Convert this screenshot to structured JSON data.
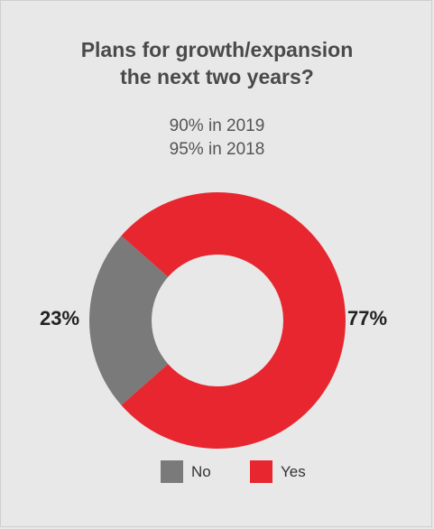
{
  "chart_data": {
    "type": "pie",
    "title": "Plans for growth/expansion the next two years?",
    "title_lines": [
      "Plans for growth/expansion",
      "the next two years?"
    ],
    "subtitle_lines": [
      "90% in 2019",
      "95% in 2018"
    ],
    "categories": [
      "No",
      "Yes"
    ],
    "values": [
      23,
      77
    ],
    "value_labels": [
      "23%",
      "77%"
    ],
    "colors": [
      "#7a7a7a",
      "#e8262f"
    ],
    "donut": true,
    "legend_placement": "bottom"
  }
}
